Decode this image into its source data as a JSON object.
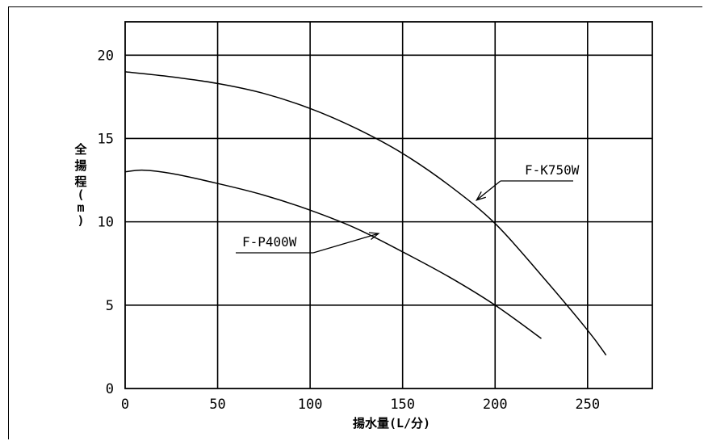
{
  "chart_data": {
    "type": "line",
    "title": "",
    "xlabel": "揚水量(L/分)",
    "ylabel": "全揚程(m)",
    "xlim": [
      0,
      285
    ],
    "ylim": [
      0,
      22
    ],
    "x_ticks": [
      0,
      50,
      100,
      150,
      200,
      250
    ],
    "y_ticks": [
      0,
      5,
      10,
      15,
      20
    ],
    "grid": true,
    "legend": "none",
    "series": [
      {
        "name": "F-K750W",
        "x": [
          0,
          25,
          50,
          75,
          100,
          125,
          150,
          175,
          200,
          225,
          250,
          260
        ],
        "y": [
          19.0,
          18.7,
          18.3,
          17.7,
          16.8,
          15.6,
          14.1,
          12.2,
          9.9,
          6.8,
          3.5,
          2.0
        ]
      },
      {
        "name": "F-P400W",
        "x": [
          0,
          10,
          25,
          50,
          75,
          100,
          125,
          150,
          175,
          200,
          225
        ],
        "y": [
          13.0,
          13.1,
          12.9,
          12.3,
          11.6,
          10.7,
          9.6,
          8.2,
          6.7,
          5.0,
          3.0
        ]
      }
    ],
    "annotations": [
      {
        "text": "F-K750W",
        "series": "F-K750W",
        "x": 190,
        "y": 11.3
      },
      {
        "text": "F-P400W",
        "series": "F-P400W",
        "x": 137,
        "y": 9.3
      }
    ]
  }
}
